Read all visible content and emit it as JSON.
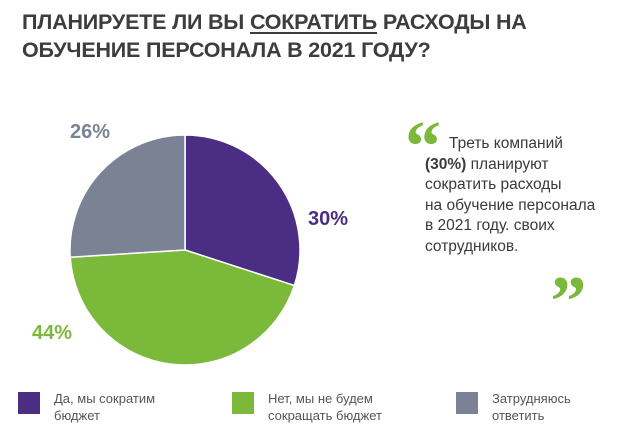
{
  "header": {
    "title_part1": "ПЛАНИРУЕТЕ ЛИ ВЫ ",
    "title_underlined": "СОКРАТИТЬ",
    "title_part2": " РАСХОДЫ НА ОБУЧЕНИЕ ПЕРСОНАЛА В 2021 ГОДУ?"
  },
  "quote": {
    "line1": "Треть компаний",
    "highlight": "(30%)",
    "line2_rest": " планируют",
    "line3": "сократить расходы",
    "line4": "на обучение персонала",
    "line5": "в 2021 году. своих",
    "line6": "сотрудников.",
    "accent_color": "#7BB93A"
  },
  "chart_data": {
    "type": "pie",
    "categories": [
      "Да, мы сократим бюджет",
      "Нет, мы не будем сокращать бюджет",
      "Затрудняюсь ответить"
    ],
    "values": [
      30,
      44,
      26
    ],
    "labels": [
      "30%",
      "44%",
      "26%"
    ],
    "colors": [
      "#4B2E83",
      "#7BB93A",
      "#7B8294"
    ],
    "label_colors": [
      "#4B2E83",
      "#7BB93A",
      "#7B8294"
    ],
    "start": "top, clockwise",
    "legend_position": "bottom"
  },
  "legend": [
    {
      "line1": "Да, мы сократим",
      "line2": "бюджет"
    },
    {
      "line1": "Нет, мы не будем",
      "line2": "сокращать бюджет"
    },
    {
      "line1": "Затрудняюсь",
      "line2": "ответить"
    }
  ]
}
